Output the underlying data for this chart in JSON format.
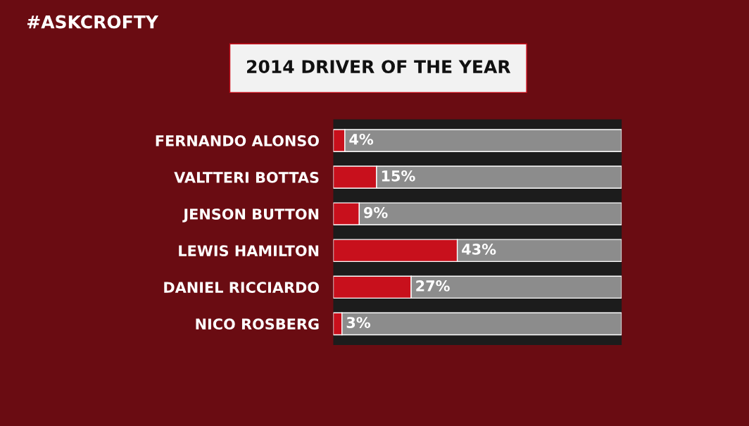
{
  "chart_data": {
    "type": "bar",
    "orientation": "horizontal",
    "stacked": true,
    "title": "2014 DRIVER OF THE YEAR",
    "annotations": [
      "#ASKCROFTY"
    ],
    "categories": [
      "FERNANDO ALONSO",
      "VALTTERI BOTTAS",
      "JENSON BUTTON",
      "LEWIS HAMILTON",
      "DANIEL RICCIARDO",
      "NICO ROSBERG"
    ],
    "series": [
      {
        "color": "#c8101c",
        "values": [
          4,
          15,
          9,
          43,
          27,
          3
        ],
        "value_labels": [
          "4%",
          "15%",
          "9%",
          "43%",
          "27%",
          "3%"
        ]
      },
      {
        "color": "#8c8c8c",
        "values": [
          96,
          85,
          91,
          57,
          73,
          97
        ]
      }
    ],
    "tick_labels": "y"
  }
}
